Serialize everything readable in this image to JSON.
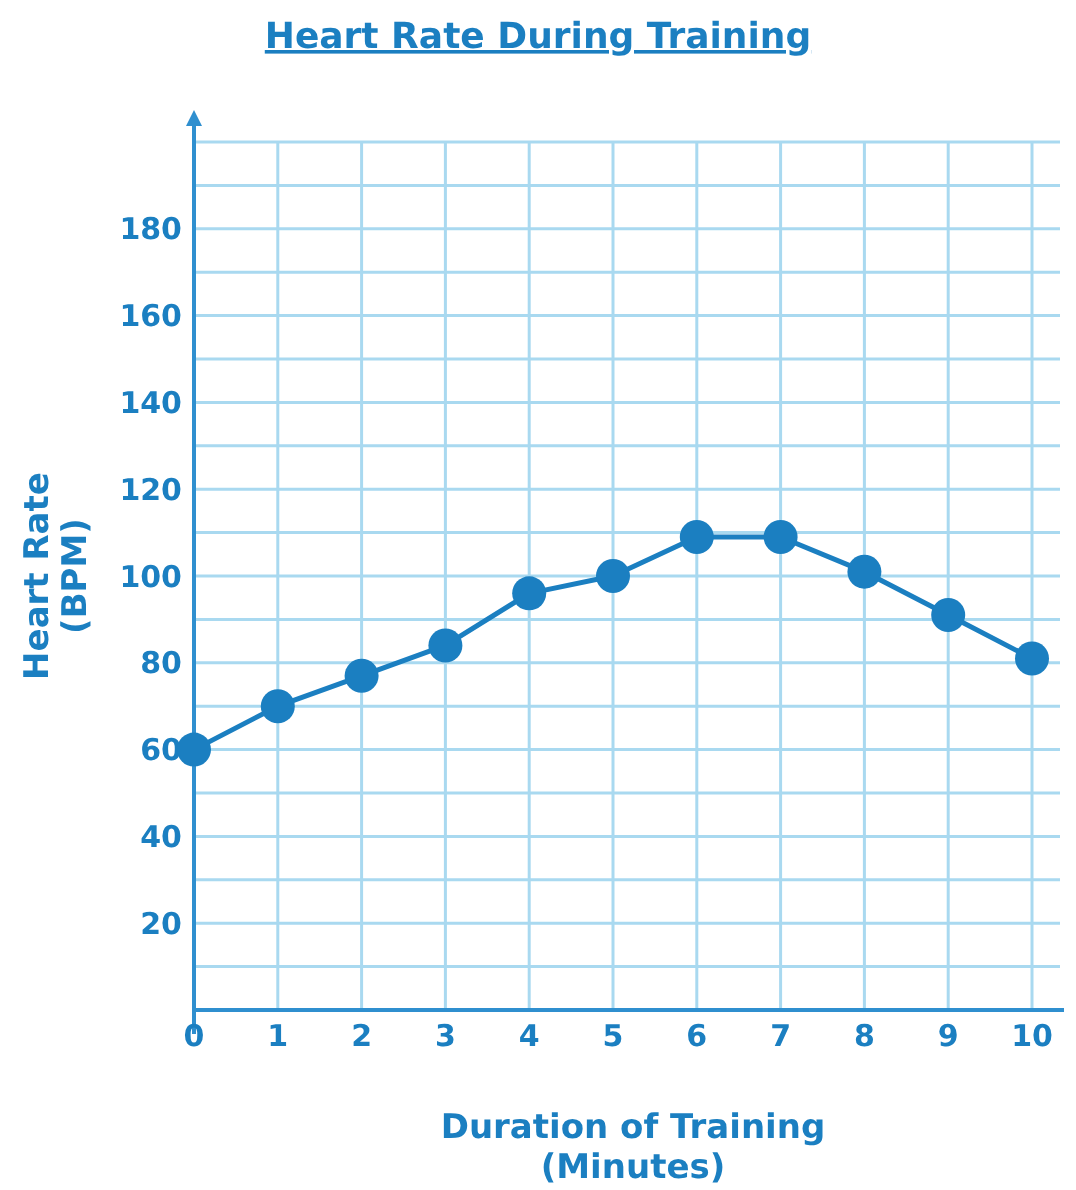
{
  "chart_data": {
    "type": "line",
    "title": "Heart Rate During Training",
    "xlabel": "Duration of Training\n(Minutes)",
    "ylabel": "Heart Rate\n(BPM)",
    "x": [
      0,
      1,
      2,
      3,
      4,
      5,
      6,
      7,
      8,
      9,
      10
    ],
    "series": [
      {
        "color": "#1b7fc1",
        "values": [
          60,
          70,
          77,
          84,
          96,
          100,
          109,
          109,
          101,
          91,
          81
        ]
      }
    ],
    "xlim": [
      0,
      10
    ],
    "xticks": [
      0,
      1,
      2,
      3,
      4,
      5,
      6,
      7,
      8,
      9,
      10
    ],
    "ylim": [
      0,
      200
    ],
    "yticks": [
      {
        "value": 10,
        "label": null
      },
      20,
      {
        "value": 30,
        "label": null
      },
      40,
      {
        "value": 50,
        "label": null
      },
      60,
      {
        "value": 70,
        "label": null
      },
      80,
      {
        "value": 90,
        "label": null
      },
      100,
      {
        "value": 110,
        "label": null
      },
      120,
      {
        "value": 130,
        "label": null
      },
      140,
      {
        "value": 150,
        "label": null
      },
      160,
      {
        "value": 170,
        "label": null
      },
      180,
      {
        "value": 190,
        "label": null
      },
      {
        "value": 200,
        "label": null
      }
    ],
    "grid": true,
    "marker": "circle",
    "line_style": "solid"
  }
}
